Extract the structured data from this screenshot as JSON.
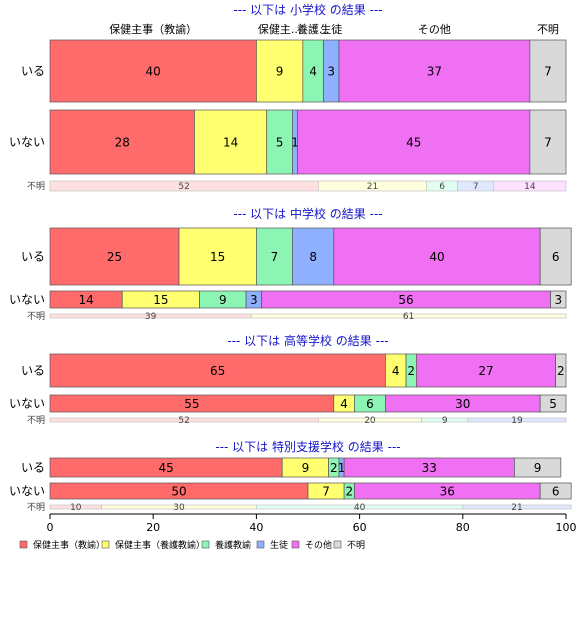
{
  "chart_data": {
    "type": "bar",
    "orientation": "horizontal",
    "stacked": true,
    "xlim": [
      0,
      100
    ],
    "xticks": [
      0,
      20,
      40,
      60,
      80,
      100
    ],
    "categories": [
      "保健主事（教諭）",
      "保健主事（養護教諭）",
      "養護教諭",
      "生徒",
      "その他",
      "不明"
    ],
    "top_category_labels": [
      "保健主事（教諭）",
      "保健主...",
      "養護...",
      "生徒",
      "その他",
      "不明"
    ],
    "colors": [
      "#ff6b6b",
      "#ffff70",
      "#8cf5b4",
      "#8fb0ff",
      "#f070f4",
      "#d9d9d9"
    ],
    "unknown_colors": [
      "#ffe0e0",
      "#ffffdd",
      "#e0fff0",
      "#e0e8ff",
      "#ffe0ff",
      "#dcdcdc"
    ],
    "legend": {
      "placement": "bottom-left",
      "items": [
        "保健主事（教諭）",
        "保健主事（養護教諭）",
        "養護教諭",
        "生徒",
        "その他",
        "不明"
      ]
    },
    "panels": [
      {
        "title": "--- 以下は 小学校 の結果 ---",
        "rows": [
          {
            "label": "いる",
            "values": [
              40,
              9,
              4,
              3,
              37,
              7
            ]
          },
          {
            "label": "いない",
            "values": [
              28,
              14,
              5,
              1,
              45,
              7
            ]
          }
        ],
        "unknown": {
          "label": "不明",
          "values": [
            52,
            21,
            6,
            7,
            14
          ]
        }
      },
      {
        "title": "--- 以下は 中学校 の結果 ---",
        "rows": [
          {
            "label": "いる",
            "values": [
              25,
              15,
              7,
              8,
              40,
              6
            ]
          },
          {
            "label": "いない",
            "values": [
              14,
              15,
              9,
              3,
              56,
              3
            ]
          }
        ],
        "unknown": {
          "label": "不明",
          "values": [
            39,
            61
          ]
        }
      },
      {
        "title": "--- 以下は 高等学校 の結果 ---",
        "rows": [
          {
            "label": "いる",
            "values": [
              65,
              4,
              2,
              0,
              27,
              2
            ]
          },
          {
            "label": "いない",
            "values": [
              55,
              4,
              6,
              0,
              30,
              5
            ]
          }
        ],
        "unknown": {
          "label": "不明",
          "values": [
            52,
            20,
            9,
            19
          ]
        }
      },
      {
        "title": "--- 以下は 特別支援学校 の結果 ---",
        "rows": [
          {
            "label": "いる",
            "values": [
              45,
              9,
              2,
              1,
              33,
              9
            ]
          },
          {
            "label": "いない",
            "values": [
              50,
              7,
              2,
              0,
              36,
              6
            ]
          }
        ],
        "unknown": {
          "label": "不明",
          "values": [
            10,
            30,
            40,
            21
          ]
        }
      }
    ]
  }
}
